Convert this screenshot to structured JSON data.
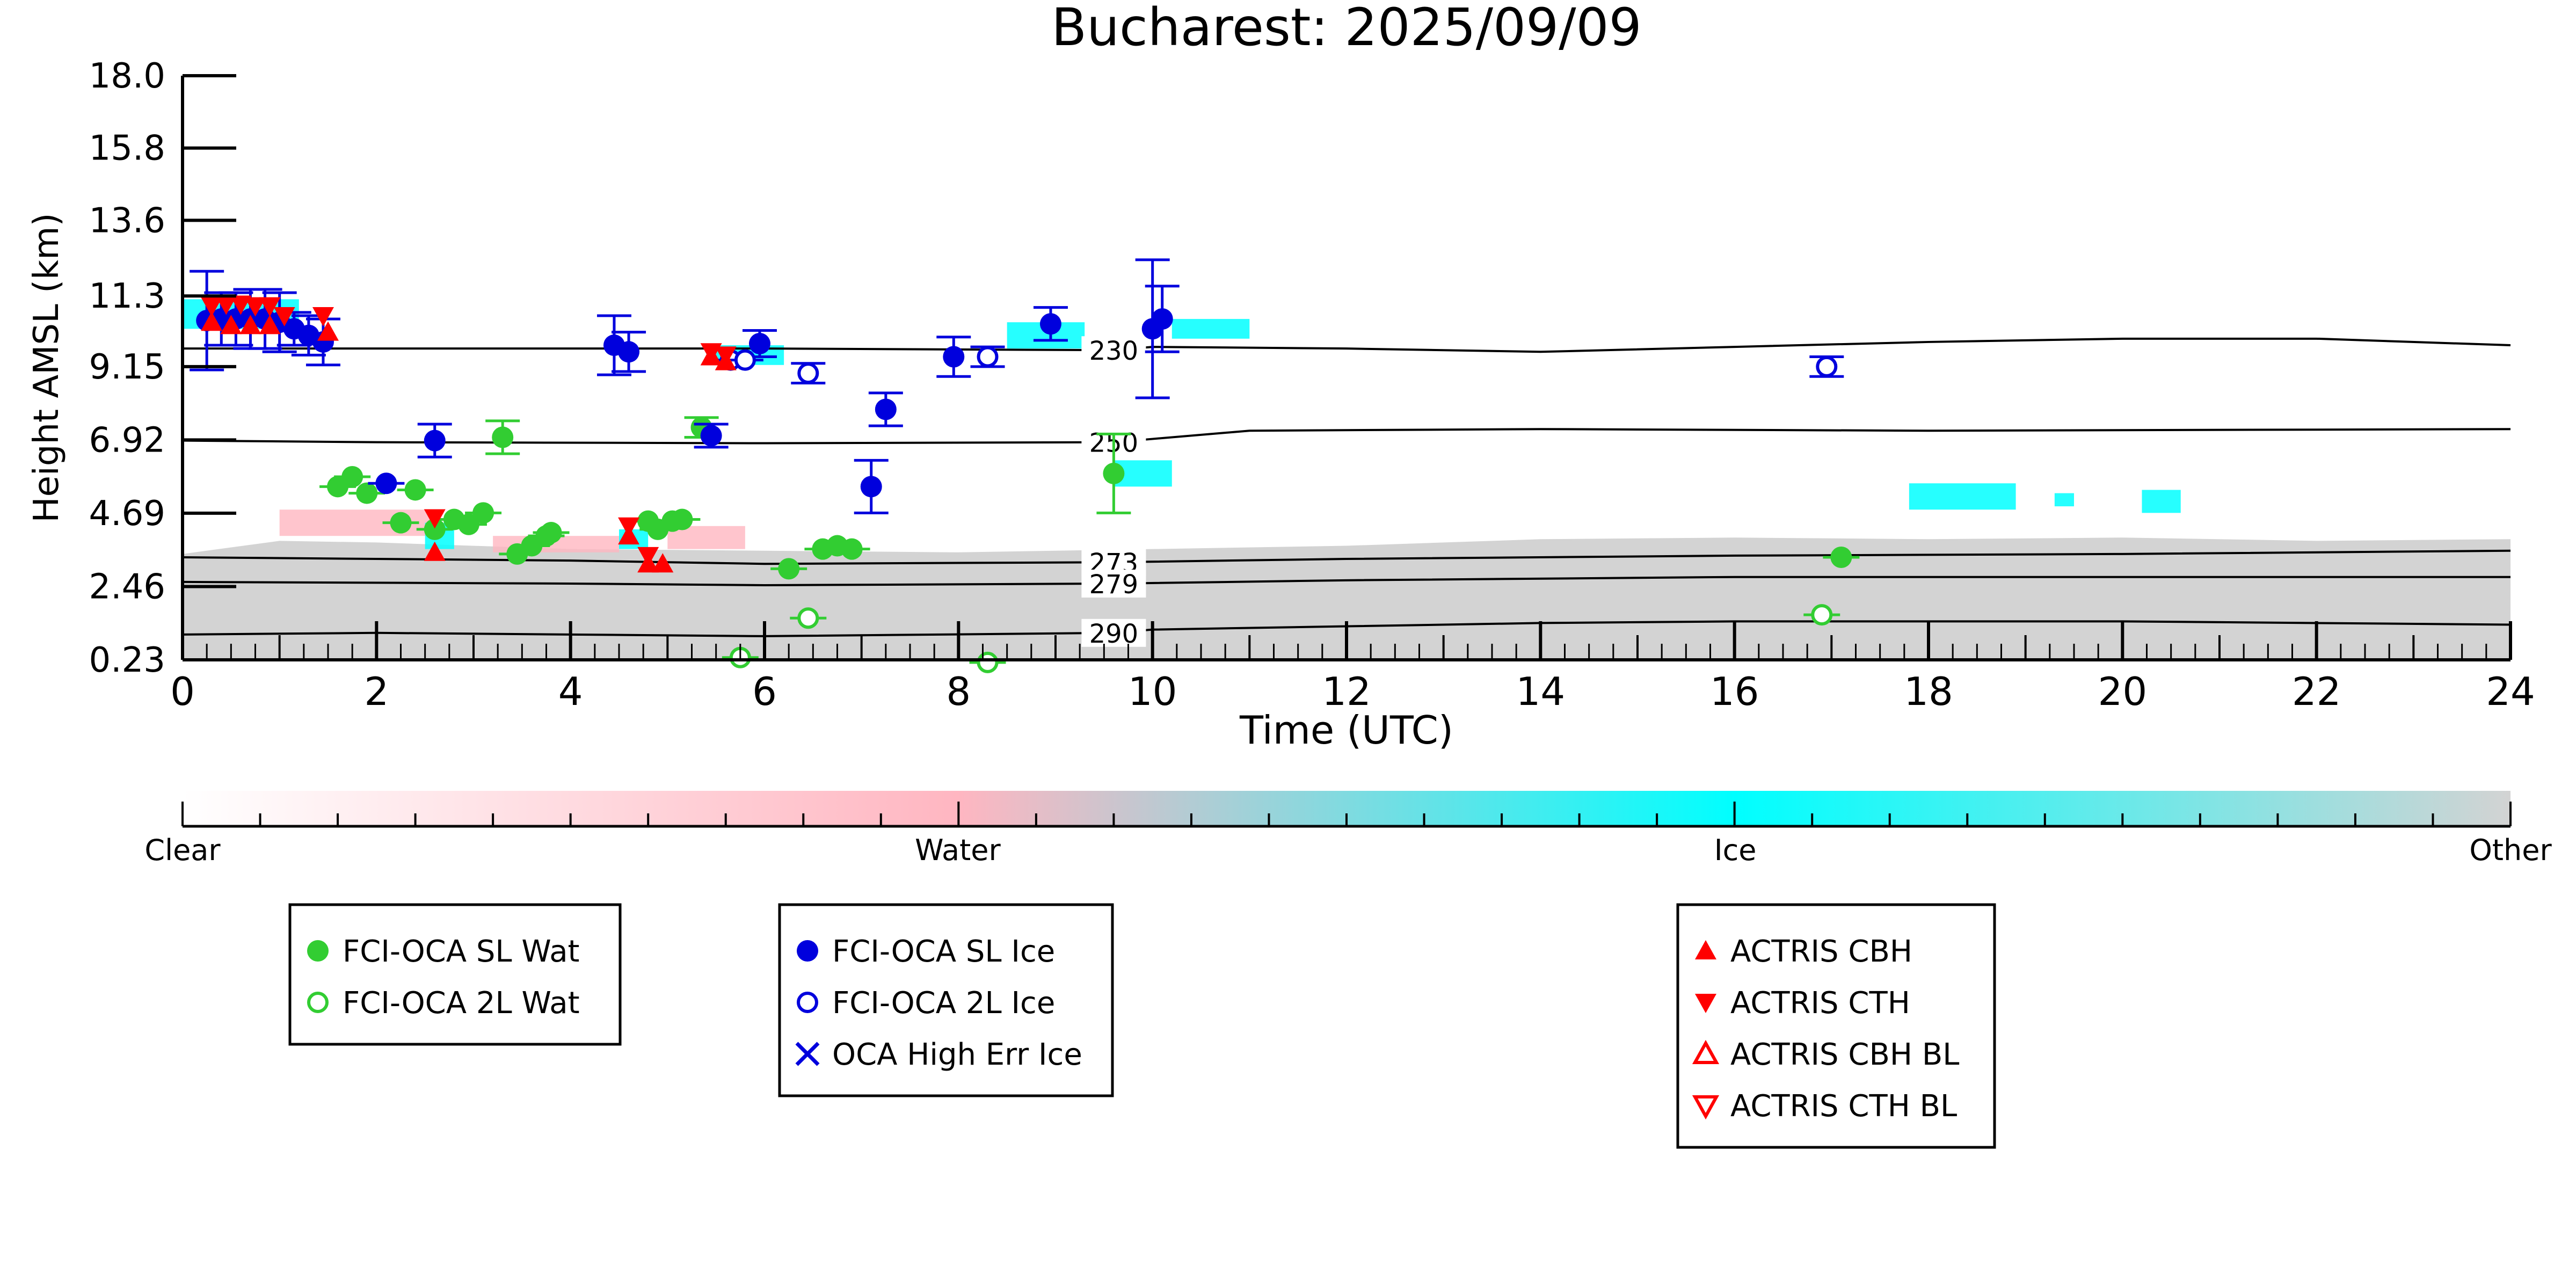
{
  "chart_data": {
    "type": "scatter",
    "title": "Bucharest: 2025/09/09",
    "xlabel": "Time (UTC)",
    "ylabel": "Height AMSL (km)",
    "xlim": [
      0,
      24
    ],
    "ylim": [
      0.23,
      18.0
    ],
    "x_ticks": [
      "0",
      "2",
      "4",
      "6",
      "8",
      "10",
      "12",
      "14",
      "16",
      "18",
      "20",
      "22",
      "24"
    ],
    "y_ticks": [
      "0.23",
      "2.46",
      "4.69",
      "6.92",
      "9.15",
      "11.3",
      "13.6",
      "15.8",
      "18.0"
    ],
    "y_tick_values": [
      0.23,
      2.46,
      4.69,
      6.92,
      9.15,
      11.3,
      13.6,
      15.8,
      18.0
    ],
    "colorbar": {
      "labels": [
        "Clear",
        "Water",
        "Ice",
        "Other"
      ],
      "colors": [
        "#ffffff",
        "#ffb6c1",
        "#00ffff",
        "#d3d3d3"
      ]
    },
    "isotherms": [
      {
        "label": "230",
        "points": [
          [
            0,
            9.7
          ],
          [
            2,
            9.7
          ],
          [
            6,
            9.7
          ],
          [
            9.6,
            9.65
          ],
          [
            10,
            9.75
          ],
          [
            12,
            9.7
          ],
          [
            14,
            9.6
          ],
          [
            16,
            9.75
          ],
          [
            18,
            9.9
          ],
          [
            20,
            10.0
          ],
          [
            22,
            10.0
          ],
          [
            24,
            9.8
          ]
        ]
      },
      {
        "label": "250",
        "points": [
          [
            0,
            6.9
          ],
          [
            2,
            6.85
          ],
          [
            6,
            6.82
          ],
          [
            9.6,
            6.85
          ],
          [
            10,
            6.95
          ],
          [
            11,
            7.2
          ],
          [
            14,
            7.25
          ],
          [
            18,
            7.2
          ],
          [
            24,
            7.25
          ]
        ]
      },
      {
        "label": "273",
        "points": [
          [
            0,
            3.35
          ],
          [
            4,
            3.25
          ],
          [
            6,
            3.15
          ],
          [
            9.6,
            3.2
          ],
          [
            12,
            3.3
          ],
          [
            16,
            3.4
          ],
          [
            20,
            3.45
          ],
          [
            24,
            3.55
          ]
        ]
      },
      {
        "label": "279",
        "points": [
          [
            0,
            2.6
          ],
          [
            4,
            2.55
          ],
          [
            6,
            2.5
          ],
          [
            9.6,
            2.55
          ],
          [
            12,
            2.65
          ],
          [
            16,
            2.75
          ],
          [
            20,
            2.75
          ],
          [
            24,
            2.75
          ]
        ]
      },
      {
        "label": "290",
        "points": [
          [
            0,
            1.0
          ],
          [
            2,
            1.05
          ],
          [
            4,
            1.0
          ],
          [
            6,
            0.95
          ],
          [
            9.6,
            1.05
          ],
          [
            10,
            1.15
          ],
          [
            12,
            1.25
          ],
          [
            14,
            1.35
          ],
          [
            16,
            1.4
          ],
          [
            20,
            1.4
          ],
          [
            24,
            1.3
          ]
        ]
      }
    ],
    "series": [
      {
        "name": "FCI-OCA SL Wat",
        "color": "#32cd32",
        "marker": "filled-circle",
        "points": [
          [
            1.6,
            5.5,
            0
          ],
          [
            1.75,
            5.8,
            0
          ],
          [
            1.9,
            5.3,
            0
          ],
          [
            2.4,
            5.4,
            0
          ],
          [
            2.25,
            4.4,
            0
          ],
          [
            2.6,
            4.2,
            0
          ],
          [
            2.8,
            4.5,
            0
          ],
          [
            2.95,
            4.35,
            0
          ],
          [
            3.1,
            4.7,
            0
          ],
          [
            3.3,
            7.0,
            0.5
          ],
          [
            3.45,
            3.45,
            0
          ],
          [
            3.6,
            3.7,
            0
          ],
          [
            3.75,
            4.0,
            0
          ],
          [
            3.8,
            4.1,
            0
          ],
          [
            4.8,
            4.45,
            0
          ],
          [
            4.9,
            4.2,
            0
          ],
          [
            5.05,
            4.45,
            0
          ],
          [
            5.15,
            4.5,
            0
          ],
          [
            5.35,
            7.3,
            0.3
          ],
          [
            6.25,
            3.0,
            0
          ],
          [
            6.6,
            3.6,
            0
          ],
          [
            6.75,
            3.7,
            0
          ],
          [
            6.9,
            3.6,
            0
          ],
          [
            9.6,
            5.9,
            1.2
          ],
          [
            17.1,
            3.35,
            0
          ]
        ]
      },
      {
        "name": "FCI-OCA 2L Wat",
        "color": "#32cd32",
        "marker": "open-circle",
        "points": [
          [
            5.75,
            0.3,
            0
          ],
          [
            6.45,
            1.5,
            0
          ],
          [
            8.3,
            0.15,
            0
          ],
          [
            16.9,
            1.6,
            0
          ]
        ]
      },
      {
        "name": "FCI-OCA SL Ice",
        "color": "#0000dd",
        "marker": "filled-circle",
        "points": [
          [
            0.25,
            10.55,
            1.5
          ],
          [
            0.4,
            10.6,
            0.8
          ],
          [
            0.55,
            10.6,
            0.8
          ],
          [
            0.7,
            10.6,
            0.9
          ],
          [
            0.85,
            10.6,
            0.9
          ],
          [
            1.0,
            10.5,
            0.9
          ],
          [
            1.15,
            10.3,
            0.5
          ],
          [
            1.3,
            10.1,
            0.6
          ],
          [
            1.45,
            9.9,
            0.7
          ],
          [
            2.1,
            5.6,
            0
          ],
          [
            2.6,
            6.9,
            0.5
          ],
          [
            4.45,
            9.8,
            0.9
          ],
          [
            4.6,
            9.6,
            0.6
          ],
          [
            5.45,
            7.05,
            0.35
          ],
          [
            5.95,
            9.85,
            0.4
          ],
          [
            7.1,
            5.5,
            0.8
          ],
          [
            7.25,
            7.85,
            0.5
          ],
          [
            7.95,
            9.45,
            0.6
          ],
          [
            8.95,
            10.45,
            0.5
          ],
          [
            10.0,
            10.3,
            2.1
          ],
          [
            10.1,
            10.6,
            1.0
          ]
        ]
      },
      {
        "name": "FCI-OCA 2L Ice",
        "color": "#0000dd",
        "marker": "open-circle",
        "points": [
          [
            5.65,
            9.35,
            0
          ],
          [
            5.8,
            9.35,
            0
          ],
          [
            6.45,
            8.95,
            0.3
          ],
          [
            8.3,
            9.45,
            0.3
          ],
          [
            16.95,
            9.15,
            0.3
          ]
        ]
      },
      {
        "name": "OCA High Err Ice",
        "color": "#0000dd",
        "marker": "x",
        "points": []
      },
      {
        "name": "ACTRIS CBH",
        "color": "#ff0000",
        "marker": "triangle-up",
        "points": [
          [
            0.3,
            10.5,
            0
          ],
          [
            0.5,
            10.4,
            0
          ],
          [
            0.7,
            10.4,
            0
          ],
          [
            0.9,
            10.4,
            0
          ],
          [
            1.5,
            10.2,
            0
          ],
          [
            2.6,
            3.5,
            0
          ],
          [
            4.6,
            4.0,
            0
          ],
          [
            4.8,
            3.15,
            0
          ],
          [
            4.95,
            3.15,
            0
          ],
          [
            5.45,
            9.45,
            0
          ],
          [
            5.6,
            9.3,
            0
          ]
        ]
      },
      {
        "name": "ACTRIS CTH",
        "color": "#ff0000",
        "marker": "triangle-down",
        "points": [
          [
            0.3,
            11.0,
            0
          ],
          [
            0.45,
            11.05,
            0
          ],
          [
            0.6,
            11.05,
            0
          ],
          [
            0.75,
            11.0,
            0
          ],
          [
            0.9,
            11.0,
            0
          ],
          [
            1.05,
            10.7,
            0
          ],
          [
            1.45,
            10.7,
            0
          ],
          [
            2.6,
            4.55,
            0
          ],
          [
            4.6,
            4.3,
            0
          ],
          [
            4.8,
            3.4,
            0
          ],
          [
            5.45,
            9.6,
            0
          ],
          [
            5.6,
            9.5,
            0
          ]
        ]
      },
      {
        "name": "ACTRIS CBH BL",
        "color": "#ff0000",
        "marker": "open-triangle-up",
        "points": []
      },
      {
        "name": "ACTRIS CTH BL",
        "color": "#ff0000",
        "marker": "open-triangle-down",
        "points": []
      }
    ],
    "legends": [
      [
        "FCI-OCA SL Wat",
        "FCI-OCA 2L Wat"
      ],
      [
        "FCI-OCA SL Ice",
        "FCI-OCA 2L Ice",
        "OCA High Err Ice"
      ],
      [
        "ACTRIS CBH",
        "ACTRIS CTH",
        "ACTRIS CBH BL",
        "ACTRIS CTH BL"
      ]
    ],
    "background": {
      "other_layer_top": [
        [
          0,
          3.45
        ],
        [
          1,
          3.85
        ],
        [
          2,
          3.8
        ],
        [
          4,
          3.6
        ],
        [
          6,
          3.55
        ],
        [
          8,
          3.5
        ],
        [
          10,
          3.6
        ],
        [
          12,
          3.7
        ],
        [
          14,
          3.9
        ],
        [
          16,
          3.95
        ],
        [
          18,
          3.9
        ],
        [
          20,
          3.95
        ],
        [
          22,
          3.85
        ],
        [
          24,
          3.9
        ]
      ],
      "ice_patches": [
        {
          "x": [
            0,
            1.2
          ],
          "y": [
            10.3,
            11.2
          ]
        },
        {
          "x": [
            5.4,
            6.2
          ],
          "y": [
            9.2,
            9.8
          ]
        },
        {
          "x": [
            8.5,
            9.3
          ],
          "y": [
            9.7,
            10.5
          ]
        },
        {
          "x": [
            10.2,
            11.0
          ],
          "y": [
            10.0,
            10.6
          ]
        },
        {
          "x": [
            9.6,
            10.2
          ],
          "y": [
            5.5,
            6.3
          ]
        },
        {
          "x": [
            17.8,
            18.9
          ],
          "y": [
            4.8,
            5.6
          ]
        },
        {
          "x": [
            19.3,
            19.5
          ],
          "y": [
            4.9,
            5.3
          ]
        },
        {
          "x": [
            20.2,
            20.6
          ],
          "y": [
            4.7,
            5.4
          ]
        },
        {
          "x": [
            2.5,
            2.8
          ],
          "y": [
            3.6,
            4.4
          ]
        },
        {
          "x": [
            4.5,
            4.8
          ],
          "y": [
            3.6,
            4.2
          ]
        }
      ],
      "water_patches": [
        {
          "x": [
            1.0,
            2.6
          ],
          "y": [
            4.0,
            4.8
          ]
        },
        {
          "x": [
            3.2,
            4.5
          ],
          "y": [
            3.5,
            4.0
          ]
        },
        {
          "x": [
            5.0,
            5.8
          ],
          "y": [
            3.6,
            4.3
          ]
        }
      ]
    }
  }
}
